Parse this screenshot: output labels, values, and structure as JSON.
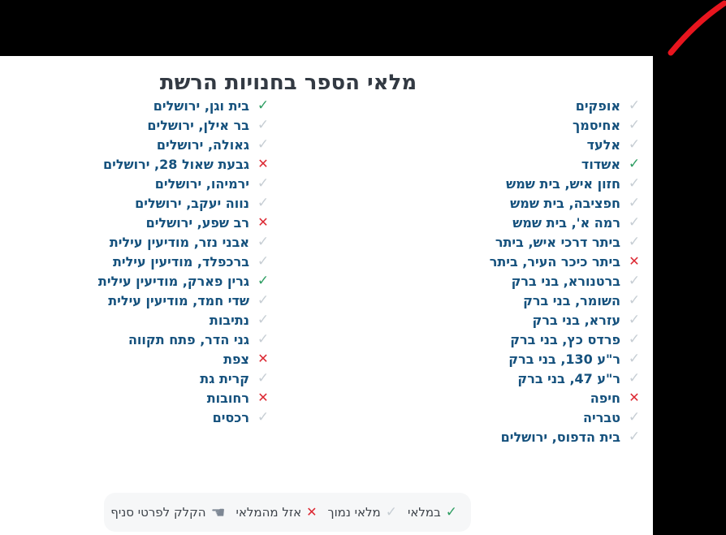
{
  "title": "מלאי הספר בחנויות הרשת",
  "icons": {
    "check": "✓",
    "x": "✕",
    "hand": "☚"
  },
  "colors": {
    "in_stock": "#2f9e63",
    "low_stock": "#c7ced4",
    "out_of_stock": "#dc2832",
    "item_text": "#15517d",
    "title_text": "#333a43",
    "legend_bg": "#f6f7f8",
    "legend_text": "#3d434a",
    "hand_icon": "#7d8794",
    "swoosh": "#e8151e",
    "frame": "#000000"
  },
  "branches": {
    "right_column": [
      {
        "name": "אופקים",
        "status": "low_stock"
      },
      {
        "name": "אחיסמך",
        "status": "low_stock"
      },
      {
        "name": "אלעד",
        "status": "low_stock"
      },
      {
        "name": "אשדוד",
        "status": "in_stock"
      },
      {
        "name": "חזון איש, בית שמש",
        "status": "low_stock"
      },
      {
        "name": "חפציבה, בית שמש",
        "status": "low_stock"
      },
      {
        "name": "רמה א', בית שמש",
        "status": "low_stock"
      },
      {
        "name": "ביתר דרכי איש, ביתר",
        "status": "low_stock"
      },
      {
        "name": "ביתר כיכר העיר, ביתר",
        "status": "out_of_stock"
      },
      {
        "name": "ברטנורא, בני ברק",
        "status": "low_stock"
      },
      {
        "name": "השומר, בני ברק",
        "status": "low_stock"
      },
      {
        "name": "עזרא, בני ברק",
        "status": "low_stock"
      },
      {
        "name": "פרדס כץ, בני ברק",
        "status": "low_stock"
      },
      {
        "name": "ר\"ע 130, בני ברק",
        "status": "low_stock"
      },
      {
        "name": "ר\"ע 47, בני ברק",
        "status": "low_stock"
      },
      {
        "name": "חיפה",
        "status": "out_of_stock"
      },
      {
        "name": "טבריה",
        "status": "low_stock"
      },
      {
        "name": "בית הדפוס, ירושלים",
        "status": "low_stock"
      }
    ],
    "left_column": [
      {
        "name": "בית וגן, ירושלים",
        "status": "in_stock"
      },
      {
        "name": "בר אילן, ירושלים",
        "status": "low_stock"
      },
      {
        "name": "גאולה, ירושלים",
        "status": "low_stock"
      },
      {
        "name": "גבעת שאול 28, ירושלים",
        "status": "out_of_stock"
      },
      {
        "name": "ירמיהו, ירושלים",
        "status": "low_stock"
      },
      {
        "name": "נווה יעקב, ירושלים",
        "status": "low_stock"
      },
      {
        "name": "רב שפע, ירושלים",
        "status": "out_of_stock"
      },
      {
        "name": "אבני נזר, מודיעין עילית",
        "status": "low_stock"
      },
      {
        "name": "ברכפלד, מודיעין עילית",
        "status": "low_stock"
      },
      {
        "name": "גרין פארק, מודיעין עילית",
        "status": "in_stock"
      },
      {
        "name": "שדי חמד, מודיעין עילית",
        "status": "low_stock"
      },
      {
        "name": "נתיבות",
        "status": "low_stock"
      },
      {
        "name": "גני הדר, פתח תקווה",
        "status": "low_stock"
      },
      {
        "name": "צפת",
        "status": "out_of_stock"
      },
      {
        "name": "קרית גת",
        "status": "low_stock"
      },
      {
        "name": "רחובות",
        "status": "out_of_stock"
      },
      {
        "name": "רכסים",
        "status": "low_stock"
      }
    ]
  },
  "legend": {
    "items": [
      {
        "icon": "check",
        "status": "in_stock",
        "label": "במלאי"
      },
      {
        "icon": "check",
        "status": "low_stock",
        "label": "מלאי נמוך"
      },
      {
        "icon": "x",
        "status": "out_of_stock",
        "label": "אזל מהמלאי"
      },
      {
        "icon": "hand",
        "status": "hint",
        "label": "הקלק לפרטי סניף"
      }
    ]
  }
}
